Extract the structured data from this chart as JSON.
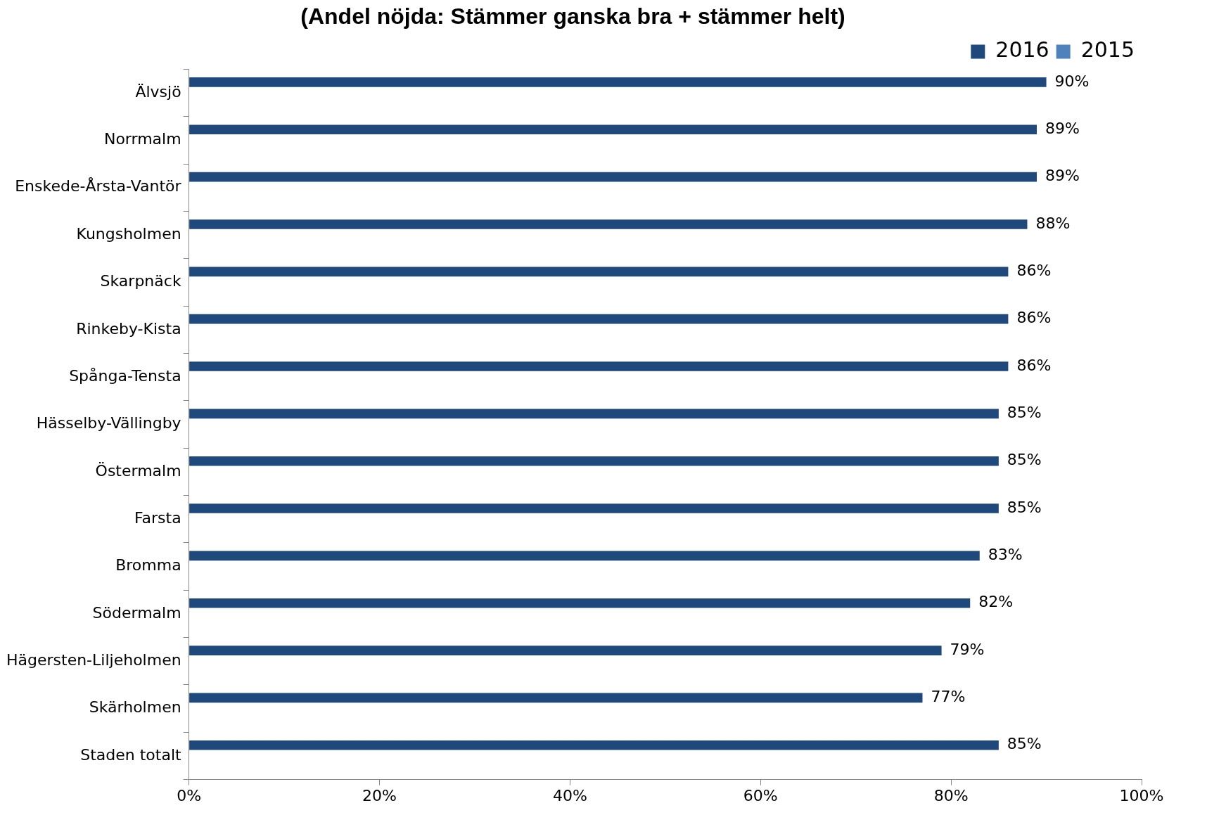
{
  "chart_data": {
    "type": "bar",
    "orientation": "horizontal",
    "title": "(Andel nöjda: Stämmer ganska bra + stämmer helt)",
    "categories": [
      "Älvsjö",
      "Norrmalm",
      "Enskede-Årsta-Vantör",
      "Kungsholmen",
      "Skarpnäck",
      "Rinkeby-Kista",
      "Spånga-Tensta",
      "Hässelby-Vällingby",
      "Östermalm",
      "Farsta",
      "Bromma",
      "Södermalm",
      "Hägersten-Liljeholmen",
      "Skärholmen",
      "Staden totalt"
    ],
    "series": [
      {
        "name": "2016",
        "color": "#1f497d",
        "values": [
          90,
          89,
          89,
          88,
          86,
          86,
          86,
          85,
          85,
          85,
          83,
          82,
          79,
          77,
          85
        ],
        "value_labels": [
          "90%",
          "89%",
          "89%",
          "88%",
          "86%",
          "86%",
          "86%",
          "85%",
          "85%",
          "85%",
          "83%",
          "82%",
          "79%",
          "77%",
          "85%"
        ]
      },
      {
        "name": "2015",
        "color": "#4f81bd",
        "values": [
          null,
          null,
          null,
          null,
          null,
          null,
          null,
          null,
          null,
          null,
          null,
          null,
          null,
          null,
          null
        ]
      }
    ],
    "xlim": [
      0,
      100
    ],
    "xticks": [
      {
        "value": 0,
        "label": "0%"
      },
      {
        "value": 20,
        "label": "20%"
      },
      {
        "value": 40,
        "label": "40%"
      },
      {
        "value": 60,
        "label": "60%"
      },
      {
        "value": 80,
        "label": "80%"
      },
      {
        "value": 100,
        "label": "100%"
      }
    ],
    "grid": false,
    "legend": "top right"
  }
}
